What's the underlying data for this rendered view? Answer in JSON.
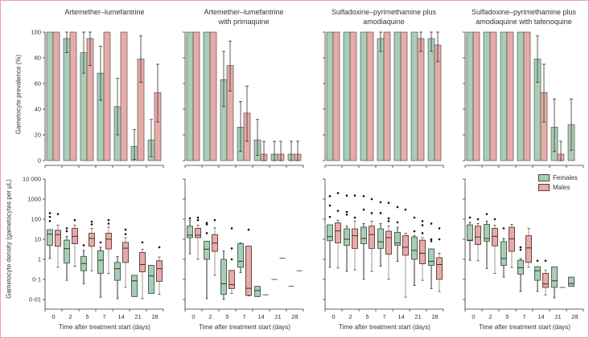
{
  "chart_data": {
    "type": "bar+boxplot",
    "panels": [
      {
        "title": [
          "Artemether–lumefantrine"
        ]
      },
      {
        "title": [
          "Artemether–lumefantrine",
          "with primaquine"
        ]
      },
      {
        "title": [
          "Sulfadoxine–pyrimethamine plus",
          "amodiaquine"
        ]
      },
      {
        "title": [
          "Sulfadoxine–pyrimethamine plus",
          "amodiaquine with tafenoquine"
        ]
      }
    ],
    "categories": [
      "0",
      "2",
      "5",
      "7",
      "14",
      "21",
      "28"
    ],
    "xlabel": "Time after treatment start (days)",
    "top": {
      "ylabel": "Gametocyte prevalence (%)",
      "ylim": [
        0,
        100
      ],
      "yticks": [
        "0",
        "20",
        "40",
        "60",
        "80",
        "100"
      ],
      "series": [
        {
          "name": "Females",
          "panels": [
            [
              [
                100,
                null,
                null
              ],
              [
                95,
                84,
                100
              ],
              [
                84,
                68,
                100
              ],
              [
                68,
                47,
                89
              ],
              [
                42,
                20,
                64
              ],
              [
                11,
                1,
                24
              ],
              [
                16,
                3,
                32
              ]
            ],
            [
              [
                100,
                null,
                null
              ],
              [
                100,
                null,
                null
              ],
              [
                63,
                42,
                85
              ],
              [
                26,
                7,
                46
              ],
              [
                16,
                4,
                32
              ],
              [
                5,
                0,
                15
              ],
              [
                5,
                0,
                15
              ]
            ],
            [
              [
                100,
                null,
                null
              ],
              [
                100,
                null,
                null
              ],
              [
                100,
                null,
                null
              ],
              [
                95,
                85,
                100
              ],
              [
                100,
                null,
                null
              ],
              [
                100,
                null,
                null
              ],
              [
                95,
                85,
                100
              ]
            ],
            [
              [
                100,
                null,
                null
              ],
              [
                100,
                null,
                null
              ],
              [
                100,
                null,
                null
              ],
              [
                100,
                null,
                null
              ],
              [
                79,
                61,
                97
              ],
              [
                26,
                7,
                48
              ],
              [
                28,
                8,
                48
              ]
            ]
          ]
        },
        {
          "name": "Males",
          "panels": [
            [
              [
                100,
                null,
                null
              ],
              [
                100,
                null,
                null
              ],
              [
                95,
                74,
                100
              ],
              [
                100,
                null,
                null
              ],
              [
                100,
                null,
                null
              ],
              [
                79,
                61,
                97
              ],
              [
                53,
                30,
                75
              ]
            ],
            [
              [
                100,
                null,
                null
              ],
              [
                100,
                null,
                null
              ],
              [
                74,
                54,
                93
              ],
              [
                37,
                15,
                58
              ],
              [
                5,
                0,
                15
              ],
              [
                5,
                0,
                15
              ],
              [
                5,
                0,
                15
              ]
            ],
            [
              [
                100,
                null,
                null
              ],
              [
                100,
                null,
                null
              ],
              [
                100,
                null,
                null
              ],
              [
                100,
                null,
                null
              ],
              [
                100,
                null,
                null
              ],
              [
                95,
                85,
                100
              ],
              [
                90,
                77,
                100
              ]
            ],
            [
              [
                100,
                null,
                null
              ],
              [
                100,
                null,
                null
              ],
              [
                100,
                null,
                null
              ],
              [
                100,
                null,
                null
              ],
              [
                53,
                30,
                75
              ],
              [
                5,
                0,
                15
              ],
              null
            ]
          ]
        }
      ]
    },
    "bottom": {
      "ylabel": "Gametocyte density (gametocytes per µL)",
      "scale": "log",
      "ylim": [
        0.01,
        10000
      ],
      "yticks": [
        "0·01",
        "0·1",
        "1",
        "10",
        "100",
        "1000",
        "10 000"
      ],
      "note": "box values: [whisker_low, q1, median, q3, whisker_high, outliers]",
      "series": [
        {
          "name": "Females",
          "panels": [
            [
              [
                1.1,
                5,
                18,
                30,
                30,
                [
                  80,
                  130,
                  200
                ]
              ],
              [
                0.09,
                0.65,
                3.4,
                9,
                14,
                [
                  25,
                  35
                ]
              ],
              [
                0.06,
                0.27,
                0.62,
                1.4,
                2.8,
                [
                  5
                ]
              ],
              [
                0.013,
                0.2,
                0.9,
                2.7,
                4,
                [
                  7
                ]
              ],
              [
                0.011,
                0.09,
                0.34,
                0.7,
                1.4,
                []
              ],
              [
                0.014,
                0.014,
                0.085,
                0.16,
                0.16,
                []
              ],
              [
                0.02,
                0.02,
                0.15,
                0.5,
                0.5,
                []
              ]
            ],
            [
              [
                1.9,
                12,
                16,
                45,
                85,
                [
                  110
                ]
              ],
              [
                0.011,
                1,
                3.2,
                8,
                8,
                [
                  20,
                  55,
                  65
                ]
              ],
              [
                0.01,
                0.018,
                0.06,
                1,
                2.6,
                []
              ],
              [
                0.22,
                0.4,
                0.8,
                6,
                6.5,
                []
              ],
              [
                0.014,
                0.014,
                0.028,
                0.045,
                0.045,
                []
              ],
              [
                0.1,
                0.1,
                0.1,
                0.1,
                0.1,
                []
              ],
              [
                0.045,
                0.045,
                0.045,
                0.045,
                0.045,
                []
              ]
            ],
            [
              [
                0.4,
                8.5,
                13.5,
                52,
                52,
                [
                  130,
                  480,
                  1400
                ]
              ],
              [
                0.25,
                5,
                10,
                33,
                45,
                [
                  170,
                  230,
                  1500
                ]
              ],
              [
                0.1,
                6,
                11,
                40,
                60,
                [
                  300,
                  1400
                ]
              ],
              [
                0.45,
                3.5,
                7.5,
                33,
                60,
                [
                  200,
                  700
                ]
              ],
              [
                0.8,
                5,
                6.5,
                22,
                40,
                [
                  70,
                  400
                ]
              ],
              [
                0.05,
                1,
                2.8,
                13,
                15,
                [
                  25,
                  120
                ]
              ],
              [
                0.035,
                0.5,
                0.8,
                3.3,
                3.3,
                [
                  8,
                  10,
                  60
                ]
              ]
            ],
            [
              [
                0.9,
                8.5,
                9,
                52,
                70,
                [
                  120
                ]
              ],
              [
                0.35,
                8,
                11,
                55,
                80,
                [
                  180
                ]
              ],
              [
                0.13,
                0.5,
                1.1,
                7.5,
                11,
                [
                  35
                ]
              ],
              [
                0.025,
                0.18,
                0.38,
                0.9,
                1.1,
                [
                  3,
                  4
                ]
              ],
              [
                0.025,
                0.09,
                0.27,
                0.43,
                0.43,
                [
                  0.85
                ]
              ],
              [
                0.012,
                0.04,
                0.085,
                0.42,
                0.42,
                []
              ],
              [
                0.045,
                0.045,
                0.062,
                0.13,
                0.13,
                []
              ]
            ]
          ]
        },
        {
          "name": "Males",
          "panels": [
            [
              [
                0.4,
                4.5,
                17,
                28,
                50,
                [
                  180
                ]
              ],
              [
                0.45,
                6,
                14,
                35,
                50,
                [
                  90
                ]
              ],
              [
                0.27,
                4.5,
                11,
                20,
                35,
                [
                  55,
                  75
                ]
              ],
              [
                0.2,
                3.3,
                10,
                20,
                40,
                [
                  60,
                  90
                ]
              ],
              [
                0.04,
                0.7,
                3.6,
                7,
                12,
                [
                  18,
                  30
                ]
              ],
              [
                0.011,
                0.24,
                0.55,
                2.2,
                3.2,
                [
                  7
                ]
              ],
              [
                0.018,
                0.08,
                0.34,
                0.85,
                1.3,
                [
                  4
                ]
              ]
            ],
            [
              [
                1,
                12,
                16,
                35,
                50,
                [
                  90,
                  120
                ]
              ],
              [
                0.16,
                2.5,
                6.5,
                17,
                37,
                [
                  90
                ]
              ],
              [
                0.02,
                0.035,
                0.055,
                0.28,
                0.28,
                [
                  1,
                  3.5,
                  35
                ]
              ],
              [
                0.015,
                0.016,
                0.036,
                4.5,
                4.5,
                [
                  30
                ]
              ],
              [
                0.017,
                0.017,
                0.017,
                0.017,
                0.017,
                []
              ],
              [
                1.15,
                1.15,
                1.15,
                1.15,
                1.15,
                []
              ],
              [
                0.27,
                0.27,
                0.27,
                0.27,
                0.27,
                []
              ]
            ],
            [
              [
                0.37,
                6.6,
                26,
                65,
                90,
                [
                  260,
                  2000
                ]
              ],
              [
                0.3,
                3.5,
                15,
                33,
                80,
                [
                  120,
                  1500
                ]
              ],
              [
                0.25,
                3.5,
                17,
                45,
                80,
                [
                  200,
                  1000
                ]
              ],
              [
                0.1,
                1.8,
                12,
                25,
                45,
                [
                  80,
                  110,
                  650
                ]
              ],
              [
                0.013,
                1.6,
                4,
                15,
                20,
                [
                  300
                ]
              ],
              [
                0.09,
                0.6,
                2,
                9,
                12,
                [
                  20,
                  50,
                  80
                ]
              ],
              [
                0.025,
                0.1,
                0.55,
                1.2,
                2,
                [
                  10,
                  35
                ]
              ]
            ],
            [
              [
                0.85,
                5.5,
                13,
                45,
                60,
                [
                  100
                ]
              ],
              [
                0.2,
                4.7,
                14,
                35,
                50,
                [
                  100
                ]
              ],
              [
                0.4,
                2.5,
                10.5,
                40,
                55,
                []
              ],
              [
                0.4,
                0.7,
                3.7,
                15,
                35,
                []
              ],
              [
                0.017,
                0.04,
                0.06,
                0.2,
                0.28,
                [
                  0.85
                ]
              ],
              [
                0.04,
                0.04,
                0.04,
                0.04,
                0.04,
                []
              ],
              null
            ]
          ]
        }
      ]
    },
    "legend": {
      "placement": "top-right of last density panel",
      "items": [
        "Females",
        "Males"
      ]
    },
    "colors": {
      "Females": "#a9cdb5",
      "Males": "#e8aba7",
      "frame": "#e3a1b6",
      "axis": "#333333"
    }
  }
}
